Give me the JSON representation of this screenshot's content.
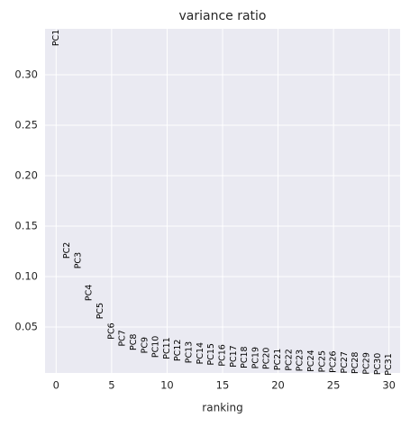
{
  "chart_data": {
    "type": "text_scatter",
    "title": "variance ratio",
    "xlabel": "ranking",
    "x": [
      0,
      1,
      2,
      3,
      4,
      5,
      6,
      7,
      8,
      9,
      10,
      11,
      12,
      13,
      14,
      15,
      16,
      17,
      18,
      19,
      20,
      21,
      22,
      23,
      24,
      25,
      26,
      27,
      28,
      29,
      30
    ],
    "labels": [
      "PC1",
      "PC2",
      "PC3",
      "PC4",
      "PC5",
      "PC6",
      "PC7",
      "PC8",
      "PC9",
      "PC10",
      "PC11",
      "PC12",
      "PC13",
      "PC14",
      "PC15",
      "PC16",
      "PC17",
      "PC18",
      "PC19",
      "PC20",
      "PC21",
      "PC22",
      "PC23",
      "PC24",
      "PC25",
      "PC26",
      "PC27",
      "PC28",
      "PC29",
      "PC30",
      "PC31"
    ],
    "values": [
      0.3366,
      0.126,
      0.116,
      0.084,
      0.066,
      0.046,
      0.039,
      0.035,
      0.032,
      0.0305,
      0.029,
      0.027,
      0.025,
      0.024,
      0.023,
      0.022,
      0.021,
      0.02,
      0.0195,
      0.019,
      0.018,
      0.0175,
      0.017,
      0.0165,
      0.016,
      0.0155,
      0.015,
      0.0145,
      0.014,
      0.0135,
      0.013
    ],
    "color": "#000000",
    "xlim": [
      -1,
      31
    ],
    "xticks": [
      0,
      5,
      10,
      15,
      20,
      25,
      30
    ],
    "ylim": [
      0.0045,
      0.3455
    ],
    "yticks": [
      0.05,
      {
        "value": 0.1,
        "label": "0.10"
      },
      0.15,
      {
        "value": 0.2,
        "label": "0.20"
      },
      0.25,
      {
        "value": 0.3,
        "label": "0.30"
      }
    ],
    "grid": true
  }
}
